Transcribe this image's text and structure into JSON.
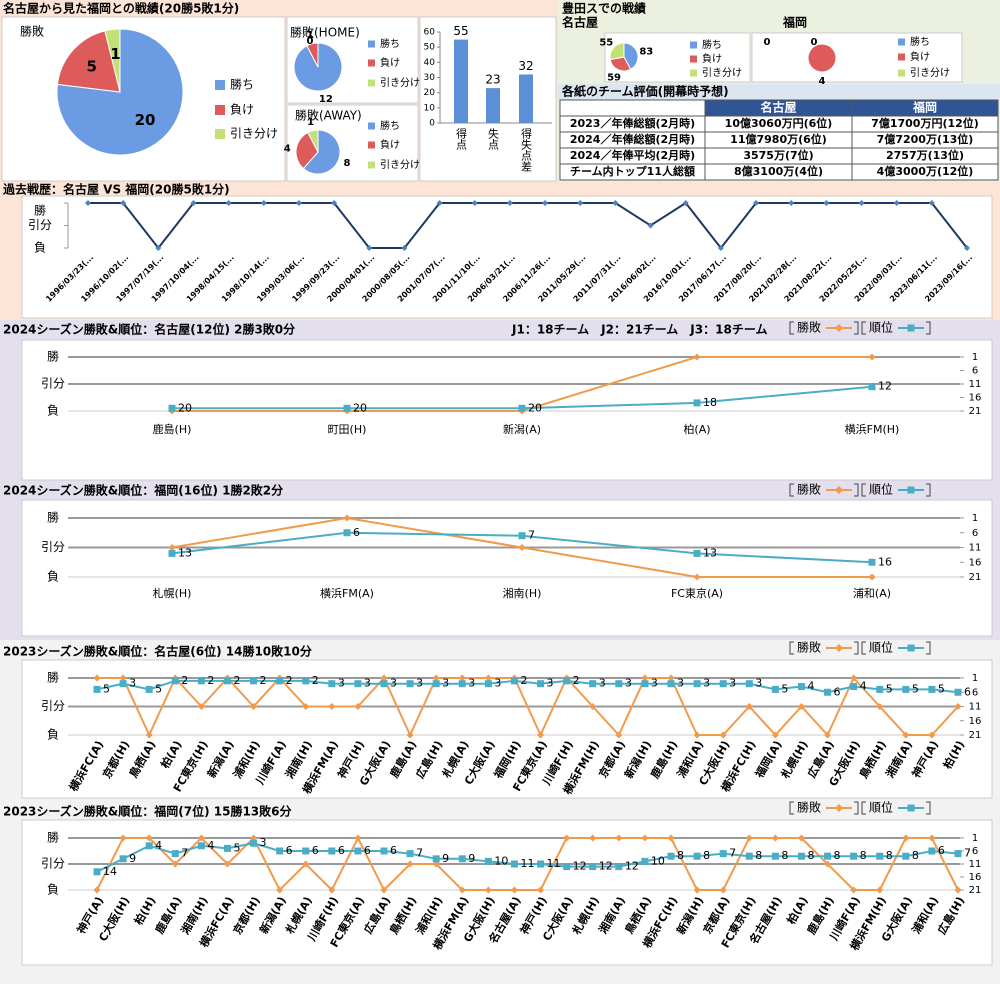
{
  "panels": {
    "head_to_head": "名古屋から見た福岡との戦績(20勝5敗1分)",
    "toyota": "豊田スでの戦績"
  },
  "chart_data": [
    {
      "type": "pie",
      "title": "勝敗",
      "categories": [
        "勝ち",
        "負け",
        "引き分け"
      ],
      "values": [
        20,
        5,
        1
      ],
      "colors": [
        "#6b9be3",
        "#dd5b5b",
        "#c2df78"
      ]
    },
    {
      "type": "pie",
      "title": "勝敗(HOME)",
      "categories": [
        "勝ち",
        "負け",
        "引き分け"
      ],
      "values": [
        12,
        1,
        0
      ],
      "colors": [
        "#6b9be3",
        "#dd5b5b",
        "#c2df78"
      ]
    },
    {
      "type": "pie",
      "title": "勝敗(AWAY)",
      "categories": [
        "勝ち",
        "負け",
        "引き分け"
      ],
      "values": [
        8,
        4,
        1
      ],
      "colors": [
        "#6b9be3",
        "#dd5b5b",
        "#c2df78"
      ]
    },
    {
      "type": "bar",
      "categories": [
        "得点",
        "失点",
        "得失点差"
      ],
      "values": [
        55,
        23,
        32
      ],
      "color": "#5b8fd6",
      "ylim": [
        0,
        60
      ],
      "yticks": [
        0,
        10,
        20,
        30,
        40,
        50,
        60
      ]
    },
    {
      "type": "pie",
      "title": "名古屋",
      "categories": [
        "勝ち",
        "負け",
        "引き分け"
      ],
      "values": [
        83,
        59,
        55
      ],
      "colors": [
        "#6b9be3",
        "#dd5b5b",
        "#c2df78"
      ]
    },
    {
      "type": "pie",
      "title": "福岡",
      "categories": [
        "勝ち",
        "負け",
        "引き分け"
      ],
      "values": [
        0,
        4,
        0
      ],
      "colors": [
        "#6b9be3",
        "#dd5b5b",
        "#c2df78"
      ]
    },
    {
      "type": "line",
      "title": "過去戦歴：名古屋 VS 福岡(20勝5敗1分)",
      "categories": [
        "1996/03/23(...",
        "1996/10/02(...",
        "1997/07/19(...",
        "1997/10/04(...",
        "1998/04/15(...",
        "1998/10/14(...",
        "1999/03/06(...",
        "1999/09/23(...",
        "2000/04/01(...",
        "2000/08/05(...",
        "2001/07/07(...",
        "2001/11/10(...",
        "2006/03/21(...",
        "2006/11/26(...",
        "2011/05/29(...",
        "2011/07/31(...",
        "2016/06/02(...",
        "2016/10/01(...",
        "2017/06/17(...",
        "2017/08/20(...",
        "2021/02/28(...",
        "2021/08/22(...",
        "2022/05/25(...",
        "2022/09/03(...",
        "2023/06/11(...",
        "2023/09/16(..."
      ],
      "values": [
        2,
        2,
        0,
        2,
        2,
        2,
        2,
        2,
        0,
        0,
        2,
        2,
        2,
        2,
        2,
        2,
        1,
        2,
        0,
        2,
        2,
        2,
        2,
        2,
        2,
        0
      ],
      "color": "#1f3864",
      "ylim": [
        0,
        2
      ],
      "yticks": [
        {
          "value": 2,
          "label": "勝"
        },
        {
          "value": 1,
          "label": "引分"
        },
        {
          "value": 0,
          "label": "負"
        }
      ],
      "grid": false
    },
    {
      "type": "line",
      "title": "2024シーズン勝敗&順位：名古屋(12位) 2勝3敗0分",
      "subtitle": "J1：18チーム　J2：21チーム　J3：18チーム",
      "categories": [
        "鹿島(H)",
        "町田(H)",
        "新潟(A)",
        "柏(A)",
        "横浜FM(H)"
      ],
      "series": [
        {
          "name": "勝敗",
          "color": "#f29a4c",
          "values": [
            0,
            0,
            0,
            2,
            2
          ]
        },
        {
          "name": "順位",
          "color": "#4bacc6",
          "values": [
            20,
            20,
            20,
            18,
            12
          ],
          "axis": "y2"
        }
      ],
      "ylim": [
        0,
        2
      ],
      "yticks": [
        {
          "value": 2,
          "label": "勝"
        },
        {
          "value": 1,
          "label": "引分"
        },
        {
          "value": 0,
          "label": "負"
        }
      ],
      "y2lim": [
        21,
        1
      ],
      "y2ticks": [
        1,
        6,
        11,
        16,
        21
      ],
      "grid": true
    },
    {
      "type": "line",
      "title": "2024シーズン勝敗&順位：福岡(16位) 1勝2敗2分",
      "categories": [
        "札幌(H)",
        "横浜FM(A)",
        "湘南(H)",
        "FC東京(A)",
        "浦和(A)"
      ],
      "series": [
        {
          "name": "勝敗",
          "color": "#f29a4c",
          "values": [
            1,
            2,
            1,
            0,
            0
          ]
        },
        {
          "name": "順位",
          "color": "#4bacc6",
          "values": [
            13,
            6,
            7,
            13,
            16
          ],
          "axis": "y2"
        }
      ],
      "ylim": [
        0,
        2
      ],
      "yticks": [
        {
          "value": 2,
          "label": "勝"
        },
        {
          "value": 1,
          "label": "引分"
        },
        {
          "value": 0,
          "label": "負"
        }
      ],
      "y2lim": [
        21,
        1
      ],
      "y2ticks": [
        1,
        6,
        11,
        16,
        21
      ],
      "grid": true
    },
    {
      "type": "line",
      "title": "2023シーズン勝敗&順位：名古屋(6位) 14勝10敗10分",
      "categories": [
        "横浜FC(A)",
        "京都(H)",
        "鳥栖(A)",
        "柏(A)",
        "FC東京(H)",
        "新潟(A)",
        "浦和(H)",
        "川崎F(A)",
        "湘南(H)",
        "横浜FM(A)",
        "神戸(H)",
        "G大阪(A)",
        "鹿島(A)",
        "広島(H)",
        "札幌(A)",
        "C大阪(A)",
        "福岡(H)",
        "FC東京(A)",
        "川崎F(H)",
        "横浜FM(H)",
        "京都(A)",
        "新潟(H)",
        "鹿島(H)",
        "浦和(A)",
        "C大阪(H)",
        "横浜FC(H)",
        "福岡(A)",
        "札幌(H)",
        "広島(A)",
        "G大阪(H)",
        "鳥栖(H)",
        "湘南(A)",
        "神戸(A)",
        "柏(H)"
      ],
      "series": [
        {
          "name": "勝敗",
          "color": "#f29a4c",
          "values": [
            2,
            2,
            0,
            2,
            1,
            2,
            1,
            2,
            1,
            1,
            1,
            2,
            0,
            2,
            2,
            2,
            2,
            0,
            2,
            1,
            0,
            2,
            2,
            0,
            0,
            1,
            0,
            1,
            0,
            2,
            1,
            0,
            0,
            1
          ]
        },
        {
          "name": "順位",
          "color": "#4bacc6",
          "values": [
            5,
            3,
            5,
            2,
            2,
            2,
            2,
            2,
            2,
            3,
            3,
            3,
            3,
            3,
            3,
            3,
            2,
            3,
            2,
            3,
            3,
            3,
            3,
            3,
            3,
            3,
            5,
            4,
            6,
            4,
            5,
            5,
            5,
            6
          ],
          "axis": "y2"
        }
      ],
      "ylim": [
        0,
        2
      ],
      "yticks": [
        {
          "value": 2,
          "label": "勝"
        },
        {
          "value": 1,
          "label": "引分"
        },
        {
          "value": 0,
          "label": "負"
        }
      ],
      "y2lim": [
        21,
        1
      ],
      "y2ticks": [
        1,
        6,
        11,
        16,
        21
      ],
      "grid": true
    },
    {
      "type": "line",
      "title": "2023シーズン勝敗&順位：福岡(7位) 15勝13敗6分",
      "categories": [
        "神戸(A)",
        "C大阪(H)",
        "柏(H)",
        "鹿島(A)",
        "湘南(H)",
        "横浜FC(A)",
        "京都(H)",
        "新潟(A)",
        "札幌(A)",
        "川崎F(H)",
        "FC東京(A)",
        "広島(A)",
        "鳥栖(H)",
        "浦和(H)",
        "横浜FM(A)",
        "G大阪(H)",
        "名古屋(A)",
        "神戸(H)",
        "C大阪(A)",
        "札幌(H)",
        "湘南(A)",
        "鳥栖(A)",
        "横浜FC(H)",
        "新潟(H)",
        "京都(A)",
        "FC東京(H)",
        "名古屋(H)",
        "柏(A)",
        "鹿島(H)",
        "川崎F(A)",
        "横浜FM(H)",
        "G大阪(A)",
        "浦和(A)",
        "広島(H)"
      ],
      "series": [
        {
          "name": "勝敗",
          "color": "#f29a4c",
          "values": [
            0,
            2,
            2,
            1,
            2,
            1,
            2,
            0,
            1,
            0,
            2,
            0,
            1,
            1,
            0,
            0,
            0,
            0,
            2,
            2,
            2,
            2,
            2,
            0,
            0,
            2,
            2,
            2,
            1,
            0,
            0,
            2,
            2,
            0
          ]
        },
        {
          "name": "順位",
          "color": "#4bacc6",
          "values": [
            14,
            9,
            4,
            7,
            4,
            5,
            3,
            6,
            6,
            6,
            6,
            6,
            7,
            9,
            9,
            10,
            11,
            11,
            12,
            12,
            12,
            10,
            8,
            8,
            7,
            8,
            8,
            8,
            8,
            8,
            8,
            8,
            6,
            7
          ],
          "axis": "y2"
        }
      ],
      "ylim": [
        0,
        2
      ],
      "yticks": [
        {
          "value": 2,
          "label": "勝"
        },
        {
          "value": 1,
          "label": "引分"
        },
        {
          "value": 0,
          "label": "負"
        }
      ],
      "y2lim": [
        21,
        1
      ],
      "y2ticks": [
        1,
        6,
        11,
        16,
        21
      ],
      "grid": true
    }
  ],
  "table": {
    "title": "各紙のチーム評価(開幕時予想)",
    "header": [
      "名古屋",
      "福岡"
    ],
    "rows": [
      [
        "2023／年俸総額(2月時)",
        "10億3060万円(6位)",
        "7億1700万円(12位)"
      ],
      [
        "2024／年俸総額(2月時)",
        "11億7980万(6位)",
        "7億7200万(13位)"
      ],
      [
        "2024／年俸平均(2月時)",
        "3575万(7位)",
        "2757万(13位)"
      ],
      [
        "チーム内トップ11人総額",
        "8億3100万(4位)",
        "4億3000万(12位)"
      ]
    ]
  }
}
